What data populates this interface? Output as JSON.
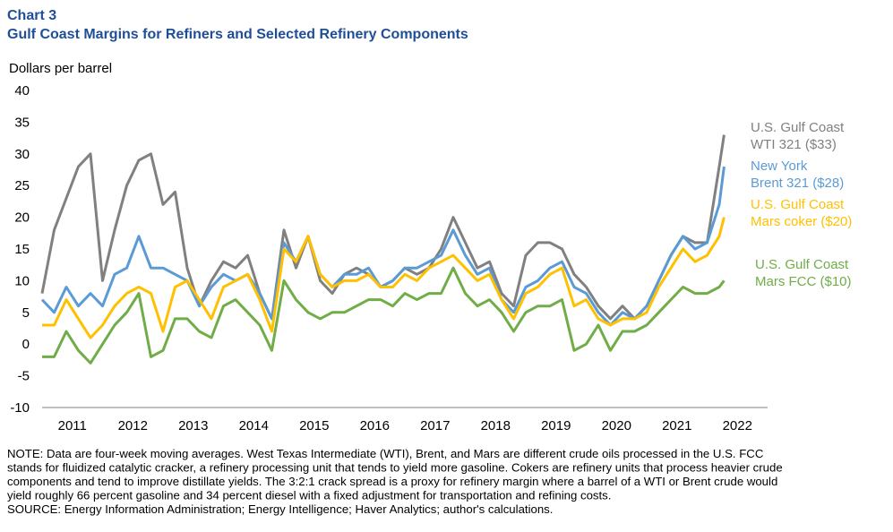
{
  "chart_data": {
    "type": "line",
    "title": "Chart 3",
    "subtitle": "Gulf Coast Margins for Refiners and Selected Refinery Components",
    "y_label": "Dollars per barrel",
    "x": [
      2011.0,
      2011.2,
      2011.4,
      2011.6,
      2011.8,
      2012.0,
      2012.2,
      2012.4,
      2012.6,
      2012.8,
      2013.0,
      2013.2,
      2013.4,
      2013.6,
      2013.8,
      2014.0,
      2014.2,
      2014.4,
      2014.6,
      2014.8,
      2015.0,
      2015.2,
      2015.4,
      2015.6,
      2015.8,
      2016.0,
      2016.2,
      2016.4,
      2016.6,
      2016.8,
      2017.0,
      2017.2,
      2017.4,
      2017.6,
      2017.8,
      2018.0,
      2018.2,
      2018.4,
      2018.6,
      2018.8,
      2019.0,
      2019.2,
      2019.4,
      2019.6,
      2019.8,
      2020.0,
      2020.2,
      2020.4,
      2020.6,
      2020.8,
      2021.0,
      2021.2,
      2021.4,
      2021.6,
      2021.8,
      2022.0,
      2022.2,
      2022.28
    ],
    "series": [
      {
        "name": [
          "U.S. Gulf Coast",
          "WTI 321 ($33)"
        ],
        "color": "#808080",
        "values": [
          8,
          18,
          23,
          28,
          30,
          10,
          18,
          25,
          29,
          30,
          22,
          24,
          12,
          6,
          10,
          13,
          12,
          14,
          8,
          4,
          18,
          12,
          17,
          10,
          8,
          11,
          12,
          11,
          9,
          10,
          12,
          11,
          12,
          15,
          20,
          16,
          12,
          13,
          8,
          6,
          14,
          16,
          16,
          15,
          11,
          9,
          6,
          4,
          6,
          4,
          6,
          10,
          14,
          17,
          16,
          16,
          28,
          33
        ]
      },
      {
        "name": [
          "New York",
          "Brent 321 ($28)"
        ],
        "color": "#5b9bd5",
        "values": [
          7,
          5,
          9,
          6,
          8,
          6,
          11,
          12,
          17,
          12,
          12,
          11,
          10,
          6,
          9,
          11,
          10,
          11,
          8,
          4,
          16,
          13,
          17,
          11,
          9,
          11,
          11,
          12,
          9,
          10,
          12,
          12,
          13,
          14,
          18,
          14,
          11,
          12,
          7,
          5,
          9,
          10,
          12,
          13,
          9,
          8,
          5,
          3,
          5,
          4,
          6,
          10,
          14,
          17,
          15,
          16,
          22,
          28
        ]
      },
      {
        "name": [
          "U.S. Gulf Coast",
          "Mars coker ($20)"
        ],
        "color": "#ffc000",
        "values": [
          3,
          3,
          7,
          4,
          1,
          3,
          6,
          8,
          9,
          8,
          2,
          9,
          10,
          7,
          4,
          9,
          10,
          11,
          7,
          2,
          15,
          13,
          17,
          11,
          9,
          10,
          10,
          11,
          9,
          9,
          11,
          10,
          12,
          13,
          14,
          12,
          10,
          11,
          7,
          4,
          8,
          9,
          11,
          12,
          6,
          7,
          4,
          3,
          4,
          4,
          5,
          9,
          12,
          15,
          13,
          14,
          17,
          20
        ]
      },
      {
        "name": [
          "U.S. Gulf Coast",
          "Mars FCC ($10)"
        ],
        "color": "#70ad47",
        "values": [
          -2,
          -2,
          2,
          -1,
          -3,
          0,
          3,
          5,
          8,
          -2,
          -1,
          4,
          4,
          2,
          1,
          6,
          7,
          5,
          3,
          -1,
          10,
          7,
          5,
          4,
          5,
          5,
          6,
          7,
          7,
          6,
          8,
          7,
          8,
          8,
          12,
          8,
          6,
          7,
          5,
          2,
          5,
          6,
          6,
          7,
          -1,
          0,
          3,
          -1,
          2,
          2,
          3,
          5,
          7,
          9,
          8,
          8,
          9,
          10
        ]
      }
    ],
    "xlim": [
      2011,
      2023
    ],
    "xticks": [
      {
        "value": 2011.5,
        "label": "2011"
      },
      {
        "value": 2012.5,
        "label": "2012"
      },
      {
        "value": 2013.5,
        "label": "2013"
      },
      {
        "value": 2014.5,
        "label": "2014"
      },
      {
        "value": 2015.5,
        "label": "2015"
      },
      {
        "value": 2016.5,
        "label": "2016"
      },
      {
        "value": 2017.5,
        "label": "2017"
      },
      {
        "value": 2018.5,
        "label": "2018"
      },
      {
        "value": 2019.5,
        "label": "2019"
      },
      {
        "value": 2020.5,
        "label": "2020"
      },
      {
        "value": 2021.5,
        "label": "2021"
      },
      {
        "value": 2022.5,
        "label": "2022"
      }
    ],
    "ylim": [
      -10,
      40
    ],
    "yticks": [
      -10,
      -5,
      0,
      5,
      10,
      15,
      20,
      25,
      30,
      35,
      40
    ],
    "notes": [
      "NOTE: Data are four-week moving averages. West Texas Intermediate (WTI), Brent, and Mars are different  crude oils processed in the U.S. FCC",
      "stands for fluidized catalytic cracker, a refinery processing unit that tends to yield more gasoline. Cokers are refinery units that process heavier crude",
      "components and tend to improve distillate yields. The 3:2:1 crack spread is a proxy for refinery margin where a barrel of a WTI or Brent crude would",
      "yield roughly 66 percent gasoline and 34 percent diesel with a fixed adjustment for transportation and refining costs.",
      "SOURCE: Energy Information Administration; Energy Intelligence; Haver Analytics; author's calculations."
    ]
  }
}
